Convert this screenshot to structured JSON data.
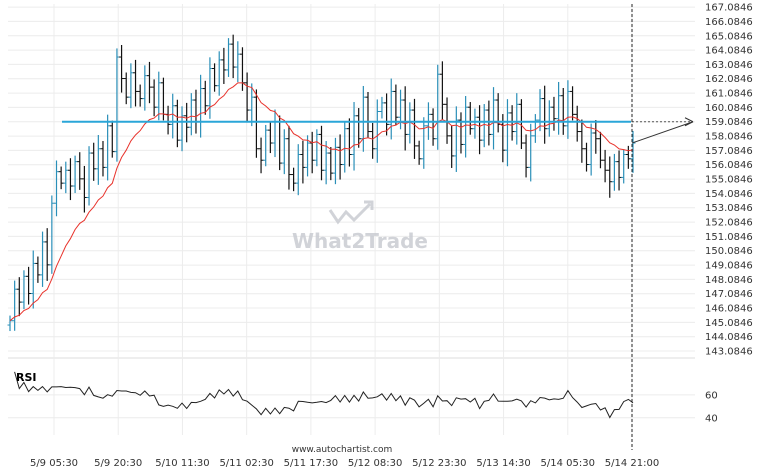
{
  "chart_data": [
    {
      "type": "ohlc",
      "y_ticks": [
        143.0846,
        144.0846,
        145.0846,
        146.0846,
        147.0846,
        148.0846,
        149.0846,
        150.0846,
        151.0846,
        152.0846,
        153.0846,
        154.0846,
        155.0846,
        156.0846,
        157.0846,
        158.0846,
        159.0846,
        160.0846,
        161.0846,
        162.0846,
        163.0846,
        164.0846,
        165.0846,
        166.0846,
        167.0846
      ],
      "ylim": [
        142.6,
        167.3
      ],
      "x_labels": [
        "5/9 05:30",
        "5/9 20:30",
        "5/10 11:30",
        "5/11 02:30",
        "5/11 17:30",
        "5/12 08:30",
        "5/12 23:30",
        "5/13 14:30",
        "5/14 05:30",
        "5/14 21:00"
      ],
      "resistance_level": 159.0846,
      "projection": {
        "from": 157.6,
        "to": 159.0846
      },
      "closes": [
        145.2,
        147.4,
        146.5,
        148.3,
        147.1,
        149.2,
        148.4,
        150.7,
        149.1,
        153.4,
        155.6,
        154.8,
        155.7,
        154.6,
        156.3,
        155.1,
        153.8,
        156.9,
        155.8,
        157.2,
        155.9,
        158.8,
        157.0,
        163.6,
        162.1,
        160.8,
        162.5,
        161.2,
        160.7,
        162.3,
        161.5,
        160.1,
        161.8,
        159.6,
        158.9,
        160.2,
        157.8,
        159.5,
        158.7,
        160.6,
        159.1,
        161.4,
        160.2,
        162.8,
        161.6,
        163.4,
        162.7,
        164.5,
        162.9,
        163.8,
        161.8,
        159.9,
        160.8,
        157.2,
        156.4,
        158.5,
        157.6,
        159.1,
        156.2,
        157.9,
        155.4,
        154.8,
        156.8,
        155.9,
        157.6,
        156.4,
        158.2,
        155.7,
        156.9,
        155.5,
        157.3,
        156.1,
        158.6,
        156.8,
        159.5,
        157.9,
        160.8,
        158.4,
        157.2,
        159.8,
        160.4,
        158.9,
        161.2,
        159.4,
        160.6,
        158.2,
        159.9,
        157.4,
        156.5,
        158.8,
        159.6,
        157.9,
        162.4,
        160.3,
        158.1,
        156.7,
        159.2,
        157.5,
        160.1,
        158.6,
        159.4,
        157.8,
        159.9,
        158.2,
        160.6,
        158.9,
        157.1,
        159.7,
        158.4,
        160.3,
        157.6,
        155.9,
        158.1,
        159.2,
        160.7,
        158.6,
        160.1,
        159.3,
        160.9,
        158.8,
        161.2,
        159.6,
        158.4,
        157.2,
        156.1,
        158.3,
        157.9,
        156.4,
        155.7,
        154.9,
        156.3,
        155.2,
        156.8,
        156.5,
        157.6
      ]
    },
    {
      "type": "line",
      "label": "RSI",
      "y_ticks": [
        40,
        60
      ],
      "ylim": [
        25,
        86
      ]
    }
  ],
  "watermark": "What2Trade",
  "source": "www.autochartist.com"
}
